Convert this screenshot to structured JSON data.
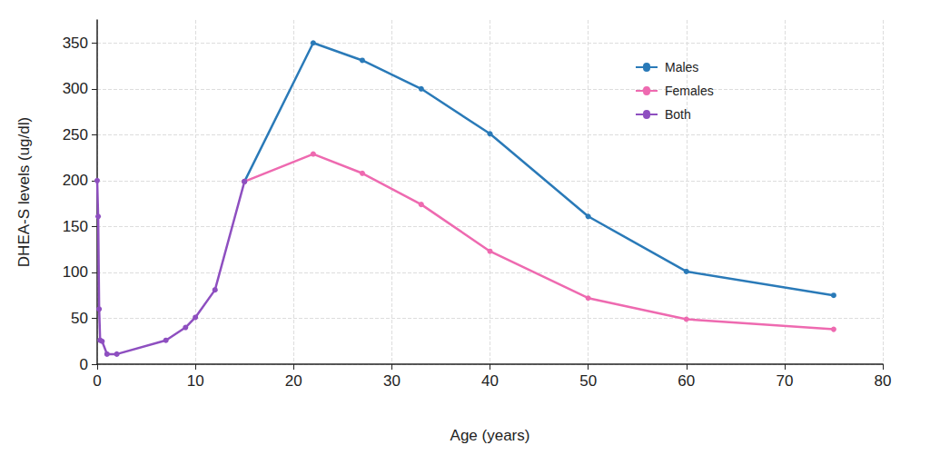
{
  "chart_data": {
    "type": "line",
    "x_label": "Age (years)",
    "y_label": "DHEA-S levels (ug/dl)",
    "xlim": [
      0,
      80
    ],
    "xticks": [
      0,
      10,
      20,
      30,
      40,
      50,
      60,
      70,
      80
    ],
    "ylim": [
      0,
      375
    ],
    "yticks": [
      0,
      50,
      100,
      150,
      200,
      250,
      300,
      350
    ],
    "grid": true,
    "legend": "upper right",
    "marker": "circle",
    "line_style": "solid",
    "series": [
      {
        "name": "Males",
        "color": "#2a7ab8",
        "x": [
          15,
          22,
          27,
          33,
          40,
          50,
          60,
          75
        ],
        "values": [
          199,
          350,
          331,
          300,
          251,
          161,
          101,
          75
        ]
      },
      {
        "name": "Females",
        "color": "#ee6ab0",
        "x": [
          15,
          22,
          27,
          33,
          40,
          50,
          60,
          75
        ],
        "values": [
          199,
          229,
          208,
          174,
          123,
          72,
          49,
          38
        ]
      },
      {
        "name": "Both",
        "color": "#8e4fc0",
        "x": [
          0,
          0.1,
          0.2,
          0.3,
          0.5,
          1,
          2,
          7,
          9,
          10,
          12,
          15
        ],
        "values": [
          200,
          161,
          60,
          26,
          25,
          11,
          11,
          26,
          40,
          51,
          81,
          199
        ]
      }
    ]
  }
}
